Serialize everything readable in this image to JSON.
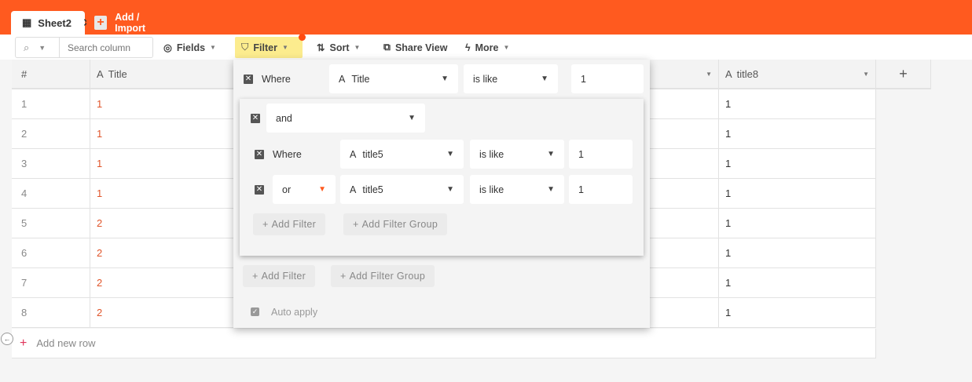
{
  "tabs": [
    {
      "label": "Sheet2",
      "icon": "grid-icon"
    }
  ],
  "add_import": "Add / Import",
  "toolbar": {
    "search_placeholder": "Search column",
    "fields": "Fields",
    "filter": "Filter",
    "sort": "Sort",
    "share": "Share View",
    "more": "More"
  },
  "columns": [
    "#",
    "Title",
    "",
    "title8"
  ],
  "rows": [
    [
      "1",
      "1",
      "",
      "1"
    ],
    [
      "2",
      "1",
      "",
      "1"
    ],
    [
      "3",
      "1",
      "",
      "1"
    ],
    [
      "4",
      "1",
      "",
      "1"
    ],
    [
      "5",
      "2",
      "",
      "1"
    ],
    [
      "6",
      "2",
      "",
      "1"
    ],
    [
      "7",
      "2",
      "",
      "1"
    ],
    [
      "8",
      "2",
      "",
      "1"
    ]
  ],
  "add_row": "Add new row",
  "filter": {
    "top": {
      "label": "Where",
      "field": "Title",
      "op": "is like",
      "value": "1"
    },
    "group": {
      "logic": "and",
      "items": [
        {
          "label": "Where",
          "field": "title5",
          "op": "is like",
          "value": "1"
        },
        {
          "label": "or",
          "field": "title5",
          "op": "is like",
          "value": "1"
        }
      ],
      "add_filter": "Add Filter",
      "add_group": "Add Filter Group"
    },
    "add_filter": "Add Filter",
    "add_group": "Add Filter Group",
    "auto_apply": "Auto apply"
  },
  "colors": {
    "brand": "#ff5a1f",
    "filter_active": "#fcec8e",
    "value_text": "#e0552a"
  }
}
